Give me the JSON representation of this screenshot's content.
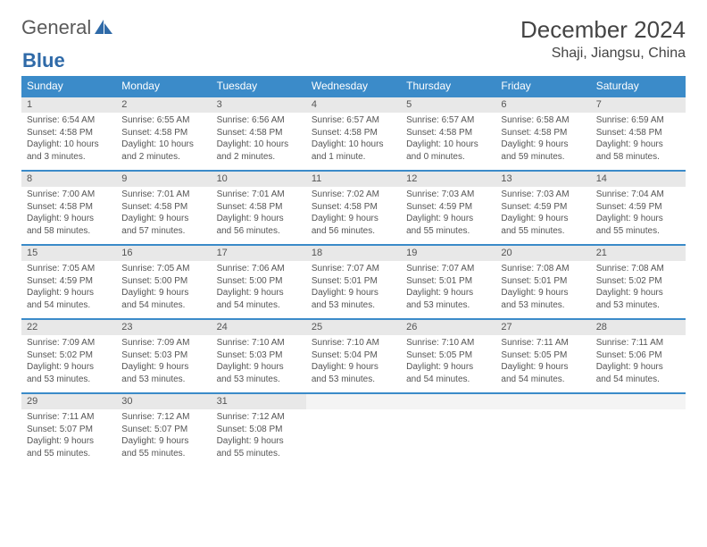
{
  "logo": {
    "text1": "General",
    "text2": "Blue"
  },
  "title": "December 2024",
  "location": "Shaji, Jiangsu, China",
  "colors": {
    "header_bg": "#3b8bc9",
    "header_text": "#ffffff",
    "daynum_bg": "#e8e8e8",
    "border": "#3b8bc9",
    "text": "#555555",
    "logo_gray": "#5a5a5a",
    "logo_blue": "#2f6aa8"
  },
  "day_headers": [
    "Sunday",
    "Monday",
    "Tuesday",
    "Wednesday",
    "Thursday",
    "Friday",
    "Saturday"
  ],
  "weeks": [
    [
      {
        "n": "1",
        "sr": "6:54 AM",
        "ss": "4:58 PM",
        "dl": "10 hours and 3 minutes."
      },
      {
        "n": "2",
        "sr": "6:55 AM",
        "ss": "4:58 PM",
        "dl": "10 hours and 2 minutes."
      },
      {
        "n": "3",
        "sr": "6:56 AM",
        "ss": "4:58 PM",
        "dl": "10 hours and 2 minutes."
      },
      {
        "n": "4",
        "sr": "6:57 AM",
        "ss": "4:58 PM",
        "dl": "10 hours and 1 minute."
      },
      {
        "n": "5",
        "sr": "6:57 AM",
        "ss": "4:58 PM",
        "dl": "10 hours and 0 minutes."
      },
      {
        "n": "6",
        "sr": "6:58 AM",
        "ss": "4:58 PM",
        "dl": "9 hours and 59 minutes."
      },
      {
        "n": "7",
        "sr": "6:59 AM",
        "ss": "4:58 PM",
        "dl": "9 hours and 58 minutes."
      }
    ],
    [
      {
        "n": "8",
        "sr": "7:00 AM",
        "ss": "4:58 PM",
        "dl": "9 hours and 58 minutes."
      },
      {
        "n": "9",
        "sr": "7:01 AM",
        "ss": "4:58 PM",
        "dl": "9 hours and 57 minutes."
      },
      {
        "n": "10",
        "sr": "7:01 AM",
        "ss": "4:58 PM",
        "dl": "9 hours and 56 minutes."
      },
      {
        "n": "11",
        "sr": "7:02 AM",
        "ss": "4:58 PM",
        "dl": "9 hours and 56 minutes."
      },
      {
        "n": "12",
        "sr": "7:03 AM",
        "ss": "4:59 PM",
        "dl": "9 hours and 55 minutes."
      },
      {
        "n": "13",
        "sr": "7:03 AM",
        "ss": "4:59 PM",
        "dl": "9 hours and 55 minutes."
      },
      {
        "n": "14",
        "sr": "7:04 AM",
        "ss": "4:59 PM",
        "dl": "9 hours and 55 minutes."
      }
    ],
    [
      {
        "n": "15",
        "sr": "7:05 AM",
        "ss": "4:59 PM",
        "dl": "9 hours and 54 minutes."
      },
      {
        "n": "16",
        "sr": "7:05 AM",
        "ss": "5:00 PM",
        "dl": "9 hours and 54 minutes."
      },
      {
        "n": "17",
        "sr": "7:06 AM",
        "ss": "5:00 PM",
        "dl": "9 hours and 54 minutes."
      },
      {
        "n": "18",
        "sr": "7:07 AM",
        "ss": "5:01 PM",
        "dl": "9 hours and 53 minutes."
      },
      {
        "n": "19",
        "sr": "7:07 AM",
        "ss": "5:01 PM",
        "dl": "9 hours and 53 minutes."
      },
      {
        "n": "20",
        "sr": "7:08 AM",
        "ss": "5:01 PM",
        "dl": "9 hours and 53 minutes."
      },
      {
        "n": "21",
        "sr": "7:08 AM",
        "ss": "5:02 PM",
        "dl": "9 hours and 53 minutes."
      }
    ],
    [
      {
        "n": "22",
        "sr": "7:09 AM",
        "ss": "5:02 PM",
        "dl": "9 hours and 53 minutes."
      },
      {
        "n": "23",
        "sr": "7:09 AM",
        "ss": "5:03 PM",
        "dl": "9 hours and 53 minutes."
      },
      {
        "n": "24",
        "sr": "7:10 AM",
        "ss": "5:03 PM",
        "dl": "9 hours and 53 minutes."
      },
      {
        "n": "25",
        "sr": "7:10 AM",
        "ss": "5:04 PM",
        "dl": "9 hours and 53 minutes."
      },
      {
        "n": "26",
        "sr": "7:10 AM",
        "ss": "5:05 PM",
        "dl": "9 hours and 54 minutes."
      },
      {
        "n": "27",
        "sr": "7:11 AM",
        "ss": "5:05 PM",
        "dl": "9 hours and 54 minutes."
      },
      {
        "n": "28",
        "sr": "7:11 AM",
        "ss": "5:06 PM",
        "dl": "9 hours and 54 minutes."
      }
    ],
    [
      {
        "n": "29",
        "sr": "7:11 AM",
        "ss": "5:07 PM",
        "dl": "9 hours and 55 minutes."
      },
      {
        "n": "30",
        "sr": "7:12 AM",
        "ss": "5:07 PM",
        "dl": "9 hours and 55 minutes."
      },
      {
        "n": "31",
        "sr": "7:12 AM",
        "ss": "5:08 PM",
        "dl": "9 hours and 55 minutes."
      },
      null,
      null,
      null,
      null
    ]
  ]
}
